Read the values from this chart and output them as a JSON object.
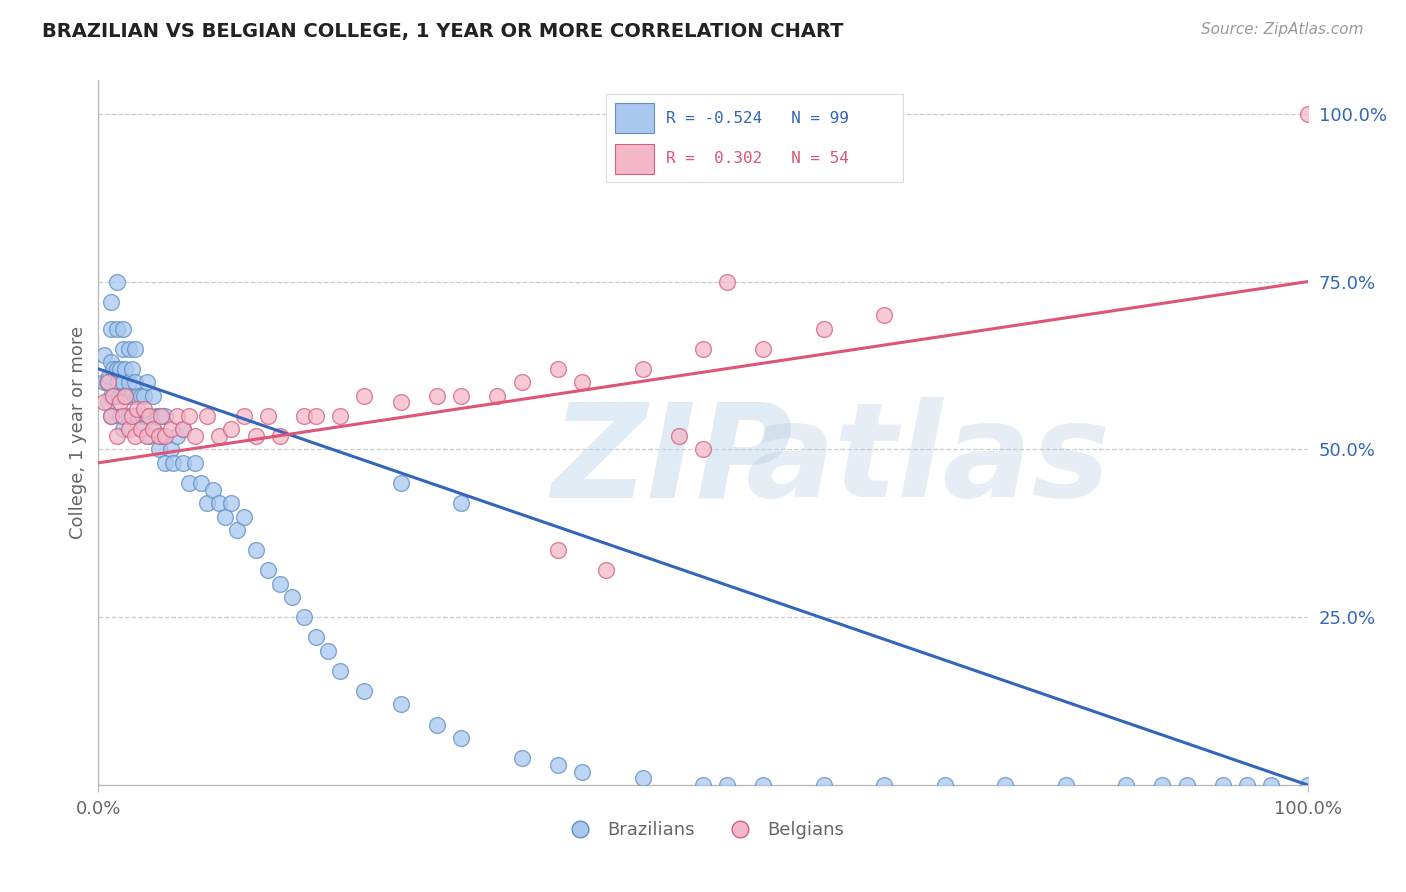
{
  "title": "BRAZILIAN VS BELGIAN COLLEGE, 1 YEAR OR MORE CORRELATION CHART",
  "source_text": "Source: ZipAtlas.com",
  "ylabel": "College, 1 year or more",
  "xlim": [
    0.0,
    1.0
  ],
  "ylim": [
    0.0,
    1.05
  ],
  "ytick_labels": [
    "25.0%",
    "50.0%",
    "75.0%",
    "100.0%"
  ],
  "ytick_positions": [
    0.25,
    0.5,
    0.75,
    1.0
  ],
  "watermark": "ZIPatlas",
  "background_color": "#ffffff",
  "grid_color": "#cccccc",
  "blue_color": "#a8c8f0",
  "pink_color": "#f5b8c8",
  "blue_edge": "#6090c0",
  "pink_edge": "#d06080",
  "trend_blue": "#3366bb",
  "trend_pink": "#dd5577",
  "title_color": "#222222",
  "label_color": "#666666",
  "blue_text_color": "#3366bb",
  "pink_text_color": "#dd5577",
  "axis_color": "#bbbbbb",
  "blue_intercept": 0.62,
  "blue_slope": -0.62,
  "pink_intercept": 0.48,
  "pink_slope": 0.27,
  "brazilians_x": [
    0.005,
    0.005,
    0.007,
    0.008,
    0.009,
    0.01,
    0.01,
    0.01,
    0.01,
    0.01,
    0.012,
    0.013,
    0.015,
    0.015,
    0.015,
    0.016,
    0.017,
    0.018,
    0.018,
    0.02,
    0.02,
    0.02,
    0.02,
    0.02,
    0.022,
    0.023,
    0.025,
    0.025,
    0.025,
    0.027,
    0.028,
    0.03,
    0.03,
    0.03,
    0.032,
    0.033,
    0.035,
    0.035,
    0.037,
    0.038,
    0.04,
    0.04,
    0.042,
    0.045,
    0.045,
    0.048,
    0.05,
    0.05,
    0.052,
    0.055,
    0.055,
    0.06,
    0.062,
    0.065,
    0.07,
    0.07,
    0.075,
    0.08,
    0.085,
    0.09,
    0.095,
    0.1,
    0.105,
    0.11,
    0.115,
    0.12,
    0.13,
    0.14,
    0.15,
    0.16,
    0.17,
    0.18,
    0.19,
    0.2,
    0.22,
    0.25,
    0.28,
    0.3,
    0.35,
    0.38,
    0.4,
    0.45,
    0.5,
    0.52,
    0.55,
    0.6,
    0.65,
    0.7,
    0.75,
    0.8,
    0.85,
    0.88,
    0.9,
    0.93,
    0.95,
    0.97,
    1.0,
    0.25,
    0.3
  ],
  "brazilians_y": [
    0.6,
    0.64,
    0.6,
    0.57,
    0.61,
    0.63,
    0.58,
    0.55,
    0.68,
    0.72,
    0.62,
    0.58,
    0.62,
    0.68,
    0.75,
    0.6,
    0.58,
    0.62,
    0.55,
    0.6,
    0.65,
    0.58,
    0.53,
    0.68,
    0.62,
    0.58,
    0.6,
    0.55,
    0.65,
    0.58,
    0.62,
    0.6,
    0.55,
    0.65,
    0.58,
    0.55,
    0.58,
    0.53,
    0.55,
    0.58,
    0.55,
    0.6,
    0.52,
    0.58,
    0.53,
    0.55,
    0.55,
    0.5,
    0.52,
    0.48,
    0.55,
    0.5,
    0.48,
    0.52,
    0.48,
    0.53,
    0.45,
    0.48,
    0.45,
    0.42,
    0.44,
    0.42,
    0.4,
    0.42,
    0.38,
    0.4,
    0.35,
    0.32,
    0.3,
    0.28,
    0.25,
    0.22,
    0.2,
    0.17,
    0.14,
    0.12,
    0.09,
    0.07,
    0.04,
    0.03,
    0.02,
    0.01,
    0.0,
    0.0,
    0.0,
    0.0,
    0.0,
    0.0,
    0.0,
    0.0,
    0.0,
    0.0,
    0.0,
    0.0,
    0.0,
    0.0,
    0.0,
    0.45,
    0.42
  ],
  "belgians_x": [
    0.005,
    0.008,
    0.01,
    0.012,
    0.015,
    0.018,
    0.02,
    0.022,
    0.025,
    0.028,
    0.03,
    0.032,
    0.035,
    0.038,
    0.04,
    0.042,
    0.045,
    0.05,
    0.052,
    0.055,
    0.06,
    0.065,
    0.07,
    0.075,
    0.08,
    0.09,
    0.1,
    0.11,
    0.12,
    0.13,
    0.14,
    0.15,
    0.17,
    0.18,
    0.2,
    0.22,
    0.25,
    0.28,
    0.3,
    0.33,
    0.35,
    0.38,
    0.4,
    0.45,
    0.5,
    0.55,
    0.6,
    0.65,
    0.5,
    0.42,
    0.38,
    1.0,
    0.52,
    0.48
  ],
  "belgians_y": [
    0.57,
    0.6,
    0.55,
    0.58,
    0.52,
    0.57,
    0.55,
    0.58,
    0.53,
    0.55,
    0.52,
    0.56,
    0.53,
    0.56,
    0.52,
    0.55,
    0.53,
    0.52,
    0.55,
    0.52,
    0.53,
    0.55,
    0.53,
    0.55,
    0.52,
    0.55,
    0.52,
    0.53,
    0.55,
    0.52,
    0.55,
    0.52,
    0.55,
    0.55,
    0.55,
    0.58,
    0.57,
    0.58,
    0.58,
    0.58,
    0.6,
    0.62,
    0.6,
    0.62,
    0.65,
    0.65,
    0.68,
    0.7,
    0.5,
    0.32,
    0.35,
    1.0,
    0.75,
    0.52
  ]
}
